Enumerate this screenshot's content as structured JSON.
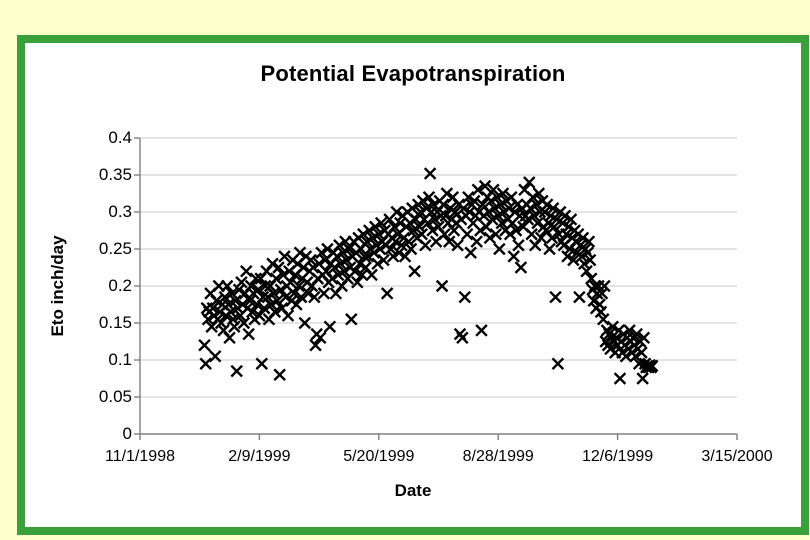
{
  "page": {
    "background": "#FFFFCC",
    "frame_border": "#3AA03A",
    "panel_background": "#FFFFFF",
    "gridline_color": "#C9C9C9",
    "axis_color": "#808080"
  },
  "chart_data": {
    "type": "scatter",
    "title": "Potential Evapotranspiration",
    "xlabel": "Date",
    "ylabel": "Eto inch/day",
    "legend": "none",
    "grid": "horizontal-major",
    "marker": {
      "shape": "x",
      "color": "#000000"
    },
    "x_axis": {
      "unit": "days since 1998-11-01",
      "min": 0,
      "max": 500,
      "tick_interval_days": 100,
      "tick_days": [
        0,
        100,
        200,
        300,
        400,
        500
      ],
      "tick_labels": [
        "11/1/1998",
        "2/9/1999",
        "5/20/1999",
        "8/28/1999",
        "12/6/1999",
        "3/15/2000"
      ]
    },
    "y_axis": {
      "min": 0,
      "max": 0.4,
      "tick_interval": 0.05,
      "tick_labels": [
        "0",
        "0.05",
        "0.1",
        "0.15",
        "0.2",
        "0.25",
        "0.3",
        "0.35",
        "0.4"
      ]
    },
    "points": [
      [
        54,
        0.12
      ],
      [
        55,
        0.095
      ],
      [
        56,
        0.17
      ],
      [
        57,
        0.155
      ],
      [
        58,
        0.165
      ],
      [
        59,
        0.19
      ],
      [
        60,
        0.145
      ],
      [
        61,
        0.17
      ],
      [
        62,
        0.16
      ],
      [
        63,
        0.105
      ],
      [
        64,
        0.18
      ],
      [
        65,
        0.155
      ],
      [
        66,
        0.2
      ],
      [
        67,
        0.165
      ],
      [
        68,
        0.15
      ],
      [
        69,
        0.175
      ],
      [
        70,
        0.14
      ],
      [
        71,
        0.185
      ],
      [
        72,
        0.16
      ],
      [
        73,
        0.2
      ],
      [
        74,
        0.175
      ],
      [
        75,
        0.13
      ],
      [
        76,
        0.165
      ],
      [
        77,
        0.19
      ],
      [
        78,
        0.155
      ],
      [
        79,
        0.145
      ],
      [
        80,
        0.18
      ],
      [
        81,
        0.085
      ],
      [
        82,
        0.17
      ],
      [
        83,
        0.195
      ],
      [
        84,
        0.16
      ],
      [
        85,
        0.205
      ],
      [
        86,
        0.175
      ],
      [
        87,
        0.15
      ],
      [
        88,
        0.19
      ],
      [
        89,
        0.22
      ],
      [
        90,
        0.17
      ],
      [
        91,
        0.135
      ],
      [
        92,
        0.18
      ],
      [
        93,
        0.2
      ],
      [
        94,
        0.165
      ],
      [
        95,
        0.19
      ],
      [
        96,
        0.155
      ],
      [
        97,
        0.21
      ],
      [
        98,
        0.175
      ],
      [
        99,
        0.195
      ],
      [
        100,
        0.16
      ],
      [
        101,
        0.21
      ],
      [
        102,
        0.095
      ],
      [
        103,
        0.185
      ],
      [
        104,
        0.17
      ],
      [
        105,
        0.2
      ],
      [
        106,
        0.22
      ],
      [
        107,
        0.185
      ],
      [
        108,
        0.155
      ],
      [
        109,
        0.2
      ],
      [
        110,
        0.175
      ],
      [
        111,
        0.23
      ],
      [
        112,
        0.19
      ],
      [
        113,
        0.165
      ],
      [
        114,
        0.21
      ],
      [
        115,
        0.18
      ],
      [
        116,
        0.225
      ],
      [
        117,
        0.08
      ],
      [
        118,
        0.195
      ],
      [
        119,
        0.17
      ],
      [
        120,
        0.215
      ],
      [
        121,
        0.24
      ],
      [
        122,
        0.185
      ],
      [
        123,
        0.2
      ],
      [
        124,
        0.16
      ],
      [
        125,
        0.22
      ],
      [
        126,
        0.205
      ],
      [
        127,
        0.18
      ],
      [
        128,
        0.235
      ],
      [
        129,
        0.19
      ],
      [
        130,
        0.215
      ],
      [
        131,
        0.175
      ],
      [
        132,
        0.23
      ],
      [
        133,
        0.2
      ],
      [
        134,
        0.245
      ],
      [
        135,
        0.185
      ],
      [
        136,
        0.21
      ],
      [
        137,
        0.225
      ],
      [
        138,
        0.15
      ],
      [
        139,
        0.24
      ],
      [
        140,
        0.205
      ],
      [
        141,
        0.19
      ],
      [
        142,
        0.22
      ],
      [
        143,
        0.235
      ],
      [
        144,
        0.2
      ],
      [
        145,
        0.225
      ],
      [
        146,
        0.185
      ],
      [
        147,
        0.12
      ],
      [
        148,
        0.135
      ],
      [
        149,
        0.21
      ],
      [
        150,
        0.23
      ],
      [
        151,
        0.13
      ],
      [
        152,
        0.245
      ],
      [
        153,
        0.215
      ],
      [
        154,
        0.19
      ],
      [
        155,
        0.235
      ],
      [
        156,
        0.22
      ],
      [
        157,
        0.25
      ],
      [
        158,
        0.205
      ],
      [
        159,
        0.145
      ],
      [
        160,
        0.23
      ],
      [
        161,
        0.21
      ],
      [
        162,
        0.245
      ],
      [
        163,
        0.225
      ],
      [
        164,
        0.19
      ],
      [
        165,
        0.24
      ],
      [
        166,
        0.215
      ],
      [
        167,
        0.255
      ],
      [
        168,
        0.23
      ],
      [
        169,
        0.2
      ],
      [
        170,
        0.245
      ],
      [
        171,
        0.22
      ],
      [
        172,
        0.26
      ],
      [
        173,
        0.235
      ],
      [
        174,
        0.21
      ],
      [
        175,
        0.25
      ],
      [
        176,
        0.225
      ],
      [
        177,
        0.155
      ],
      [
        178,
        0.24
      ],
      [
        179,
        0.26
      ],
      [
        180,
        0.22
      ],
      [
        181,
        0.245
      ],
      [
        182,
        0.205
      ],
      [
        183,
        0.265
      ],
      [
        184,
        0.23
      ],
      [
        185,
        0.25
      ],
      [
        186,
        0.215
      ],
      [
        187,
        0.27
      ],
      [
        188,
        0.24
      ],
      [
        189,
        0.225
      ],
      [
        190,
        0.26
      ],
      [
        191,
        0.24
      ],
      [
        192,
        0.275
      ],
      [
        193,
        0.25
      ],
      [
        194,
        0.215
      ],
      [
        195,
        0.265
      ],
      [
        196,
        0.245
      ],
      [
        197,
        0.28
      ],
      [
        198,
        0.255
      ],
      [
        199,
        0.23
      ],
      [
        200,
        0.27
      ],
      [
        201,
        0.25
      ],
      [
        202,
        0.285
      ],
      [
        203,
        0.26
      ],
      [
        204,
        0.235
      ],
      [
        205,
        0.275
      ],
      [
        206,
        0.255
      ],
      [
        207,
        0.19
      ],
      [
        208,
        0.27
      ],
      [
        209,
        0.29
      ],
      [
        210,
        0.25
      ],
      [
        211,
        0.265
      ],
      [
        212,
        0.24
      ],
      [
        213,
        0.28
      ],
      [
        214,
        0.26
      ],
      [
        215,
        0.3
      ],
      [
        216,
        0.27
      ],
      [
        217,
        0.245
      ],
      [
        218,
        0.285
      ],
      [
        219,
        0.255
      ],
      [
        220,
        0.295
      ],
      [
        221,
        0.265
      ],
      [
        222,
        0.24
      ],
      [
        223,
        0.28
      ],
      [
        224,
        0.3
      ],
      [
        225,
        0.26
      ],
      [
        226,
        0.285
      ],
      [
        227,
        0.25
      ],
      [
        228,
        0.305
      ],
      [
        229,
        0.275
      ],
      [
        230,
        0.22
      ],
      [
        231,
        0.29
      ],
      [
        232,
        0.265
      ],
      [
        233,
        0.31
      ],
      [
        234,
        0.28
      ],
      [
        235,
        0.3
      ],
      [
        236,
        0.27
      ],
      [
        237,
        0.315
      ],
      [
        238,
        0.29
      ],
      [
        239,
        0.255
      ],
      [
        240,
        0.305
      ],
      [
        241,
        0.285
      ],
      [
        242,
        0.32
      ],
      [
        243,
        0.352
      ],
      [
        244,
        0.3
      ],
      [
        245,
        0.275
      ],
      [
        246,
        0.31
      ],
      [
        247,
        0.29
      ],
      [
        248,
        0.26
      ],
      [
        249,
        0.3
      ],
      [
        250,
        0.28
      ],
      [
        251,
        0.315
      ],
      [
        252,
        0.295
      ],
      [
        253,
        0.2
      ],
      [
        254,
        0.31
      ],
      [
        255,
        0.27
      ],
      [
        256,
        0.295
      ],
      [
        257,
        0.325
      ],
      [
        258,
        0.285
      ],
      [
        259,
        0.26
      ],
      [
        260,
        0.305
      ],
      [
        261,
        0.29
      ],
      [
        262,
        0.32
      ],
      [
        263,
        0.275
      ],
      [
        264,
        0.3
      ],
      [
        265,
        0.285
      ],
      [
        266,
        0.255
      ],
      [
        267,
        0.31
      ],
      [
        268,
        0.135
      ],
      [
        269,
        0.29
      ],
      [
        270,
        0.13
      ],
      [
        271,
        0.305
      ],
      [
        272,
        0.185
      ],
      [
        273,
        0.295
      ],
      [
        274,
        0.27
      ],
      [
        275,
        0.32
      ],
      [
        276,
        0.3
      ],
      [
        277,
        0.245
      ],
      [
        278,
        0.31
      ],
      [
        279,
        0.285
      ],
      [
        280,
        0.315
      ],
      [
        281,
        0.295
      ],
      [
        282,
        0.26
      ],
      [
        283,
        0.33
      ],
      [
        284,
        0.3
      ],
      [
        285,
        0.275
      ],
      [
        286,
        0.14
      ],
      [
        287,
        0.31
      ],
      [
        288,
        0.295
      ],
      [
        289,
        0.335
      ],
      [
        290,
        0.28
      ],
      [
        291,
        0.32
      ],
      [
        292,
        0.3
      ],
      [
        293,
        0.265
      ],
      [
        294,
        0.315
      ],
      [
        295,
        0.29
      ],
      [
        296,
        0.33
      ],
      [
        297,
        0.305
      ],
      [
        298,
        0.27
      ],
      [
        299,
        0.32
      ],
      [
        300,
        0.295
      ],
      [
        301,
        0.25
      ],
      [
        302,
        0.31
      ],
      [
        303,
        0.285
      ],
      [
        304,
        0.325
      ],
      [
        305,
        0.3
      ],
      [
        306,
        0.275
      ],
      [
        307,
        0.315
      ],
      [
        308,
        0.29
      ],
      [
        309,
        0.305
      ],
      [
        310,
        0.27
      ],
      [
        311,
        0.32
      ],
      [
        312,
        0.285
      ],
      [
        313,
        0.24
      ],
      [
        314,
        0.3
      ],
      [
        315,
        0.275
      ],
      [
        316,
        0.31
      ],
      [
        317,
        0.255
      ],
      [
        318,
        0.295
      ],
      [
        319,
        0.225
      ],
      [
        320,
        0.305
      ],
      [
        321,
        0.28
      ],
      [
        322,
        0.33
      ],
      [
        323,
        0.295
      ],
      [
        324,
        0.31
      ],
      [
        325,
        0.29
      ],
      [
        326,
        0.34
      ],
      [
        327,
        0.305
      ],
      [
        328,
        0.27
      ],
      [
        329,
        0.32
      ],
      [
        330,
        0.295
      ],
      [
        331,
        0.255
      ],
      [
        332,
        0.31
      ],
      [
        333,
        0.285
      ],
      [
        334,
        0.325
      ],
      [
        335,
        0.3
      ],
      [
        336,
        0.265
      ],
      [
        337,
        0.315
      ],
      [
        338,
        0.28
      ],
      [
        339,
        0.3
      ],
      [
        340,
        0.275
      ],
      [
        341,
        0.31
      ],
      [
        342,
        0.285
      ],
      [
        343,
        0.25
      ],
      [
        344,
        0.295
      ],
      [
        345,
        0.265
      ],
      [
        346,
        0.305
      ],
      [
        347,
        0.28
      ],
      [
        348,
        0.185
      ],
      [
        349,
        0.29
      ],
      [
        350,
        0.095
      ],
      [
        351,
        0.27
      ],
      [
        352,
        0.3
      ],
      [
        353,
        0.26
      ],
      [
        354,
        0.285
      ],
      [
        355,
        0.255
      ],
      [
        356,
        0.295
      ],
      [
        357,
        0.27
      ],
      [
        358,
        0.24
      ],
      [
        359,
        0.28
      ],
      [
        360,
        0.25
      ],
      [
        361,
        0.29
      ],
      [
        362,
        0.265
      ],
      [
        363,
        0.235
      ],
      [
        364,
        0.275
      ],
      [
        365,
        0.26
      ],
      [
        366,
        0.245
      ],
      [
        367,
        0.27
      ],
      [
        368,
        0.185
      ],
      [
        369,
        0.255
      ],
      [
        370,
        0.24
      ],
      [
        371,
        0.265
      ],
      [
        372,
        0.23
      ],
      [
        373,
        0.25
      ],
      [
        374,
        0.22
      ],
      [
        375,
        0.245
      ],
      [
        376,
        0.26
      ],
      [
        377,
        0.235
      ],
      [
        378,
        0.21
      ],
      [
        379,
        0.195
      ],
      [
        380,
        0.18
      ],
      [
        381,
        0.2
      ],
      [
        382,
        0.17
      ],
      [
        383,
        0.19
      ],
      [
        384,
        0.2
      ],
      [
        385,
        0.175
      ],
      [
        386,
        0.165
      ],
      [
        387,
        0.19
      ],
      [
        388,
        0.155
      ],
      [
        389,
        0.2
      ],
      [
        390,
        0.125
      ],
      [
        391,
        0.14
      ],
      [
        392,
        0.12
      ],
      [
        393,
        0.135
      ],
      [
        394,
        0.115
      ],
      [
        395,
        0.13
      ],
      [
        396,
        0.145
      ],
      [
        397,
        0.125
      ],
      [
        398,
        0.11
      ],
      [
        399,
        0.13
      ],
      [
        400,
        0.12
      ],
      [
        401,
        0.14
      ],
      [
        402,
        0.075
      ],
      [
        403,
        0.125
      ],
      [
        404,
        0.11
      ],
      [
        405,
        0.135
      ],
      [
        406,
        0.12
      ],
      [
        407,
        0.105
      ],
      [
        408,
        0.13
      ],
      [
        409,
        0.115
      ],
      [
        410,
        0.14
      ],
      [
        411,
        0.125
      ],
      [
        412,
        0.11
      ],
      [
        413,
        0.13
      ],
      [
        414,
        0.12
      ],
      [
        415,
        0.105
      ],
      [
        416,
        0.135
      ],
      [
        417,
        0.115
      ],
      [
        418,
        0.095
      ],
      [
        419,
        0.125
      ],
      [
        420,
        0.11
      ],
      [
        421,
        0.075
      ],
      [
        422,
        0.13
      ],
      [
        423,
        0.095
      ],
      [
        424,
        0.09
      ],
      [
        425,
        0.092
      ],
      [
        426,
        0.09
      ],
      [
        427,
        0.093
      ],
      [
        428,
        0.09
      ],
      [
        429,
        0.092
      ]
    ]
  }
}
